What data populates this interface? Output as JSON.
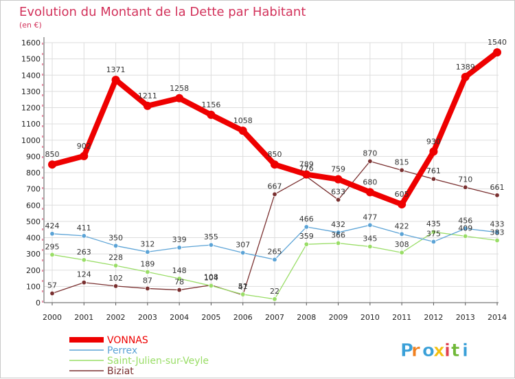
{
  "chart_data": {
    "type": "line",
    "title": "Evolution du Montant de la Dette par Habitant",
    "subtitle": "(en €)",
    "xlabel": "",
    "ylabel": "",
    "x": [
      "2000",
      "2001",
      "2002",
      "2003",
      "2004",
      "2005",
      "2006",
      "2007",
      "2008",
      "2009",
      "2010",
      "2011",
      "2012",
      "2013",
      "2014"
    ],
    "ylim": [
      0,
      1600
    ],
    "yticks": [
      0,
      100,
      200,
      300,
      400,
      500,
      600,
      700,
      800,
      900,
      1000,
      1100,
      1200,
      1300,
      1400,
      1500,
      1600
    ],
    "grid": true,
    "legend_position": "bottom-left",
    "series": [
      {
        "name": "VONNAS",
        "color": "#ee0000",
        "values": [
          850,
          902,
          1371,
          1211,
          1258,
          1156,
          1058,
          850,
          789,
          759,
          680,
          605,
          930,
          1389,
          1540
        ],
        "labels": [
          "850",
          "902",
          "1371",
          "1211",
          "1258",
          "1156",
          "1058",
          "850",
          "789",
          "759",
          "680",
          "605",
          "930",
          "1389",
          "1540"
        ]
      },
      {
        "name": "Perrex",
        "color": "#5ba3d6",
        "values": [
          424,
          411,
          350,
          312,
          339,
          355,
          307,
          265,
          466,
          432,
          477,
          422,
          375,
          456,
          433
        ],
        "labels": [
          "424",
          "411",
          "350",
          "312",
          "339",
          "355",
          "307",
          "265",
          "466",
          "432",
          "477",
          "422",
          "375",
          "456",
          "433"
        ]
      },
      {
        "name": "Saint-Julien-sur-Veyle",
        "color": "#99dd66",
        "values": [
          295,
          263,
          228,
          189,
          148,
          104,
          51,
          22,
          359,
          366,
          345,
          308,
          435,
          409,
          383
        ],
        "labels": [
          "295",
          "263",
          "228",
          "189",
          "148",
          "104",
          "51",
          "22",
          "359",
          "366",
          "345",
          "308",
          "435",
          "409",
          "383"
        ]
      },
      {
        "name": "Biziat",
        "color": "#7a3030",
        "values": [
          57,
          124,
          102,
          87,
          78,
          108,
          47,
          667,
          776,
          633,
          870,
          815,
          761,
          710,
          661
        ],
        "labels": [
          "57",
          "124",
          "102",
          "87",
          "78",
          "108",
          "47",
          "667",
          "776",
          "633",
          "870",
          "815",
          "761",
          "710",
          "661"
        ]
      }
    ]
  },
  "logo": {
    "text": "Proxiti"
  }
}
